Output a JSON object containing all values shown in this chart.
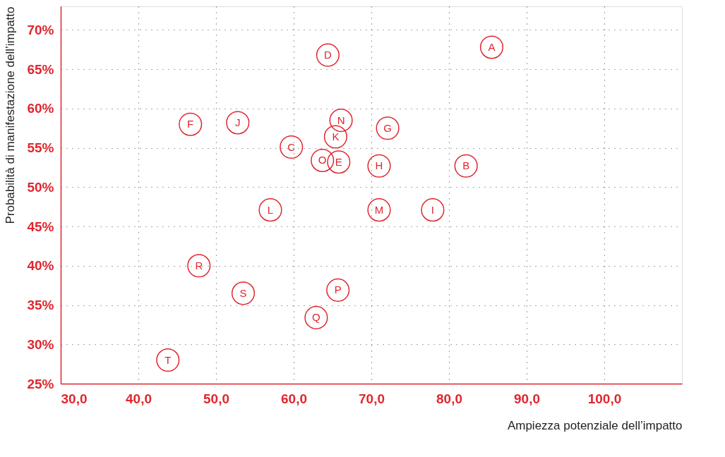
{
  "chart_data": {
    "type": "scatter",
    "xlabel": "Ampiezza potenziale dell’impatto",
    "ylabel": "Probabilità di manifestazione dell’impatto",
    "series": [
      {
        "color": "#e0262e",
        "x": [
          85.5,
          82.2,
          59.7,
          64.4,
          65.8,
          46.7,
          72.1,
          71.0,
          77.9,
          52.8,
          65.4,
          57.0,
          71.0,
          66.1,
          63.7,
          65.7,
          62.9,
          47.8,
          53.5,
          43.8
        ],
        "values": [
          67.8,
          52.7,
          55.1,
          66.8,
          53.2,
          58.0,
          57.5,
          52.7,
          47.1,
          58.2,
          56.4,
          47.1,
          47.1,
          58.5,
          53.4,
          36.9,
          33.4,
          40.0,
          36.5,
          28.0
        ]
      }
    ],
    "annotations": [
      {
        "text": "A",
        "x": 85.5,
        "y": 67.8
      },
      {
        "text": "B",
        "x": 82.2,
        "y": 52.7
      },
      {
        "text": "C",
        "x": 59.7,
        "y": 55.1
      },
      {
        "text": "D",
        "x": 64.4,
        "y": 66.8
      },
      {
        "text": "E",
        "x": 65.8,
        "y": 53.2
      },
      {
        "text": "F",
        "x": 46.7,
        "y": 58.0
      },
      {
        "text": "G",
        "x": 72.1,
        "y": 57.5
      },
      {
        "text": "H",
        "x": 71.0,
        "y": 52.7
      },
      {
        "text": "I",
        "x": 77.9,
        "y": 47.1
      },
      {
        "text": "J",
        "x": 52.8,
        "y": 58.2
      },
      {
        "text": "K",
        "x": 65.4,
        "y": 56.4
      },
      {
        "text": "L",
        "x": 57.0,
        "y": 47.1
      },
      {
        "text": "M",
        "x": 71.0,
        "y": 47.1
      },
      {
        "text": "N",
        "x": 66.1,
        "y": 58.5
      },
      {
        "text": "O",
        "x": 63.7,
        "y": 53.4
      },
      {
        "text": "P",
        "x": 65.7,
        "y": 36.9
      },
      {
        "text": "Q",
        "x": 62.9,
        "y": 33.4
      },
      {
        "text": "R",
        "x": 47.8,
        "y": 40.0
      },
      {
        "text": "S",
        "x": 53.5,
        "y": 36.5
      },
      {
        "text": "T",
        "x": 43.8,
        "y": 28.0
      }
    ],
    "xlim": [
      30,
      110
    ],
    "ylim": [
      25,
      73
    ],
    "xticks": [
      {
        "value": 30,
        "label": "30,0"
      },
      {
        "value": 40,
        "label": "40,0"
      },
      {
        "value": 50,
        "label": "50,0"
      },
      {
        "value": 60,
        "label": "60,0"
      },
      {
        "value": 70,
        "label": "70,0"
      },
      {
        "value": 80,
        "label": "80,0"
      },
      {
        "value": 90,
        "label": "90,0"
      },
      {
        "value": 100,
        "label": "100,0"
      }
    ],
    "yticks": [
      {
        "value": 25,
        "label": "25%"
      },
      {
        "value": 30,
        "label": "30%"
      },
      {
        "value": 35,
        "label": "35%"
      },
      {
        "value": 40,
        "label": "40%"
      },
      {
        "value": 45,
        "label": "45%"
      },
      {
        "value": 50,
        "label": "50%"
      },
      {
        "value": 55,
        "label": "55%"
      },
      {
        "value": 60,
        "label": "60%"
      },
      {
        "value": 65,
        "label": "65%"
      },
      {
        "value": 70,
        "label": "70%"
      }
    ],
    "grid": true,
    "marker": "circle"
  }
}
